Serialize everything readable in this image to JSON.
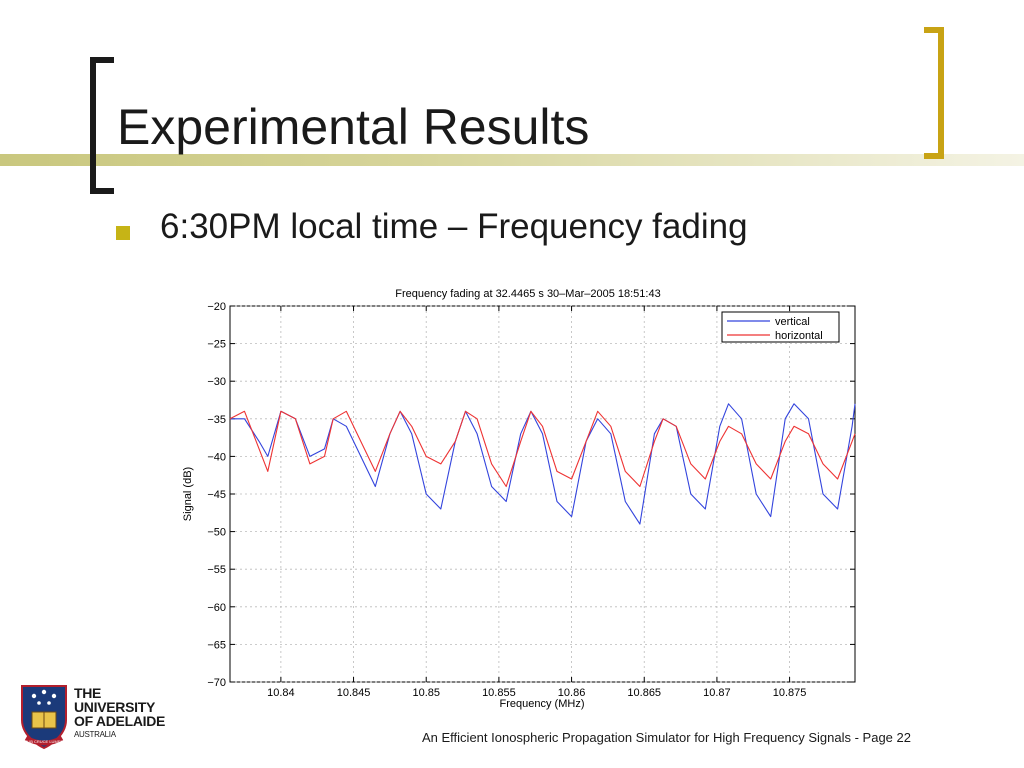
{
  "slide": {
    "title": "Experimental Results",
    "bullet": "6:30PM local time – Frequency fading",
    "footer": "An Efficient Ionospheric Propagation Simulator for High Frequency Signals - Page 22",
    "logo": {
      "line1": "THE UNIVERSITY",
      "line2": "OF ADELAIDE",
      "line3": "AUSTRALIA",
      "motto": "SUB CRUCE LUMEN"
    }
  },
  "colors": {
    "band": "#c9c77e",
    "bracket_right": "#c8a314",
    "bullet": "#c6b416",
    "vertical": "#3344dd",
    "horizontal": "#ee3333"
  },
  "chart_data": {
    "type": "line",
    "title": "Frequency fading at 32.4465 s 30–Mar–2005 18:51:43",
    "xlabel": "Frequency (MHz)",
    "ylabel": "Signal (dB)",
    "xlim": [
      10.8365,
      10.8795
    ],
    "ylim": [
      -70,
      -20
    ],
    "xticks": [
      10.84,
      10.845,
      10.85,
      10.855,
      10.86,
      10.865,
      10.87,
      10.875
    ],
    "xtick_labels": [
      "10.84",
      "10.845",
      "10.85",
      "10.855",
      "10.86",
      "10.865",
      "10.87",
      "10.875"
    ],
    "yticks": [
      -20,
      -25,
      -30,
      -35,
      -40,
      -45,
      -50,
      -55,
      -60,
      -65,
      -70
    ],
    "ytick_labels": [
      "−20",
      "−25",
      "−30",
      "−35",
      "−40",
      "−45",
      "−50",
      "−55",
      "−60",
      "−65",
      "−70"
    ],
    "grid": true,
    "legend": "top-right",
    "series": [
      {
        "name": "vertical",
        "x": [
          10.8365,
          10.8375,
          10.8385,
          10.8391,
          10.84,
          10.841,
          10.842,
          10.843,
          10.8436,
          10.8445,
          10.8455,
          10.8465,
          10.8475,
          10.8482,
          10.849,
          10.85,
          10.851,
          10.852,
          10.8527,
          10.8535,
          10.8545,
          10.8555,
          10.8565,
          10.8572,
          10.858,
          10.859,
          10.86,
          10.861,
          10.8618,
          10.8627,
          10.8637,
          10.8647,
          10.8657,
          10.8663,
          10.8672,
          10.8682,
          10.8692,
          10.8702,
          10.8708,
          10.8717,
          10.8727,
          10.8737,
          10.8747,
          10.8753,
          10.8763,
          10.8773,
          10.8783,
          10.8793,
          10.8795
        ],
        "values": [
          -35,
          -35,
          -38,
          -40,
          -34,
          -35,
          -40,
          -39,
          -35,
          -36,
          -40,
          -44,
          -37,
          -34,
          -37,
          -45,
          -47,
          -38,
          -34,
          -37,
          -44,
          -46,
          -37,
          -34,
          -37,
          -46,
          -48,
          -38,
          -35,
          -37,
          -46,
          -49,
          -37,
          -35,
          -36,
          -45,
          -47,
          -36,
          -33,
          -35,
          -45,
          -48,
          -35,
          -33,
          -35,
          -45,
          -47,
          -36,
          -33
        ]
      },
      {
        "name": "horizontal",
        "x": [
          10.8365,
          10.8375,
          10.8385,
          10.8391,
          10.84,
          10.841,
          10.842,
          10.843,
          10.8436,
          10.8445,
          10.8455,
          10.8465,
          10.8475,
          10.8482,
          10.849,
          10.85,
          10.851,
          10.852,
          10.8527,
          10.8535,
          10.8545,
          10.8555,
          10.8565,
          10.8572,
          10.858,
          10.859,
          10.86,
          10.861,
          10.8618,
          10.8627,
          10.8637,
          10.8647,
          10.8657,
          10.8663,
          10.8672,
          10.8682,
          10.8692,
          10.8702,
          10.8708,
          10.8717,
          10.8727,
          10.8737,
          10.8747,
          10.8753,
          10.8763,
          10.8773,
          10.8783,
          10.8793,
          10.8795
        ],
        "values": [
          -35,
          -34,
          -39,
          -42,
          -34,
          -35,
          -41,
          -40,
          -35,
          -34,
          -38,
          -42,
          -37,
          -34,
          -36,
          -40,
          -41,
          -38,
          -34,
          -35,
          -41,
          -44,
          -38,
          -34,
          -36,
          -42,
          -43,
          -38,
          -34,
          -36,
          -42,
          -44,
          -38,
          -35,
          -36,
          -41,
          -43,
          -38,
          -36,
          -37,
          -41,
          -43,
          -38,
          -36,
          -37,
          -41,
          -43,
          -38,
          -37
        ]
      }
    ]
  }
}
